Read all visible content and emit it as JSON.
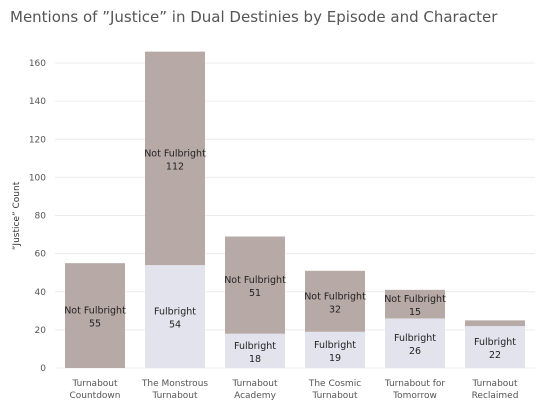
{
  "chart_data": {
    "type": "bar",
    "stacked": true,
    "title": "Mentions of ”Justice” in Dual Destinies by Episode and Character",
    "xlabel": "",
    "ylabel": "”Justice” Count",
    "ylim": [
      0,
      170
    ],
    "yticks": [
      0,
      20,
      40,
      60,
      80,
      100,
      120,
      140,
      160
    ],
    "categories": [
      [
        "Turnabout",
        "Countdown"
      ],
      [
        "The Monstrous",
        "Turnabout"
      ],
      [
        "Turnabout",
        "Academy"
      ],
      [
        "The Cosmic",
        "Turnabout"
      ],
      [
        "Turnabout for",
        "Tomorrow"
      ],
      [
        "Turnabout",
        "Reclaimed"
      ]
    ],
    "series": [
      {
        "name": "Fulbright",
        "color": "#e3e3ee",
        "values": [
          0,
          54,
          18,
          19,
          26,
          22
        ],
        "labels": [
          false,
          true,
          true,
          true,
          true,
          true
        ]
      },
      {
        "name": "Not Fulbright",
        "color": "#b7aaa6",
        "values": [
          55,
          112,
          51,
          32,
          15,
          3
        ],
        "labels": [
          true,
          true,
          true,
          true,
          true,
          false
        ]
      }
    ],
    "grid": true,
    "legend": "none"
  }
}
